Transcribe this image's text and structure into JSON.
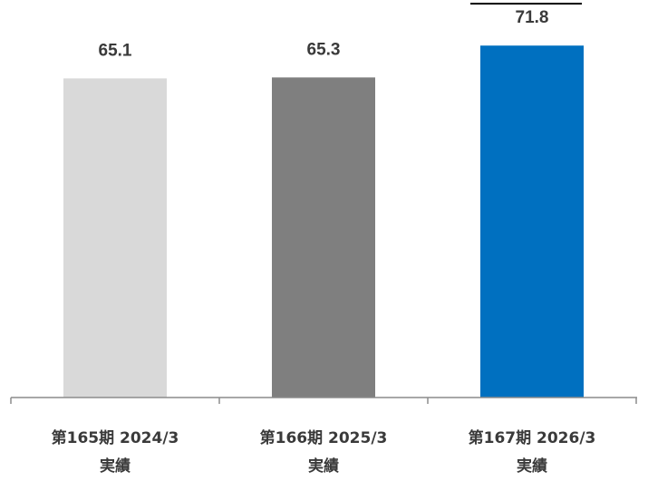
{
  "chart_data": {
    "type": "bar",
    "categories": [
      [
        "第165期 2024/3",
        "実績"
      ],
      [
        "第166期 2025/3",
        "実績"
      ],
      [
        "第167期 2026/3",
        "実績"
      ]
    ],
    "values": [
      65.1,
      65.3,
      71.8
    ],
    "value_labels": [
      "65.1",
      "65.3",
      "71.8"
    ],
    "colors": [
      "#d9d9d9",
      "#7f7f7f",
      "#0070c0"
    ],
    "axis_color": "#8c8c8c",
    "ylim": [
      0,
      81.1
    ],
    "grid": false,
    "legend": "none",
    "title": "",
    "xlabel": "",
    "ylabel": ""
  }
}
